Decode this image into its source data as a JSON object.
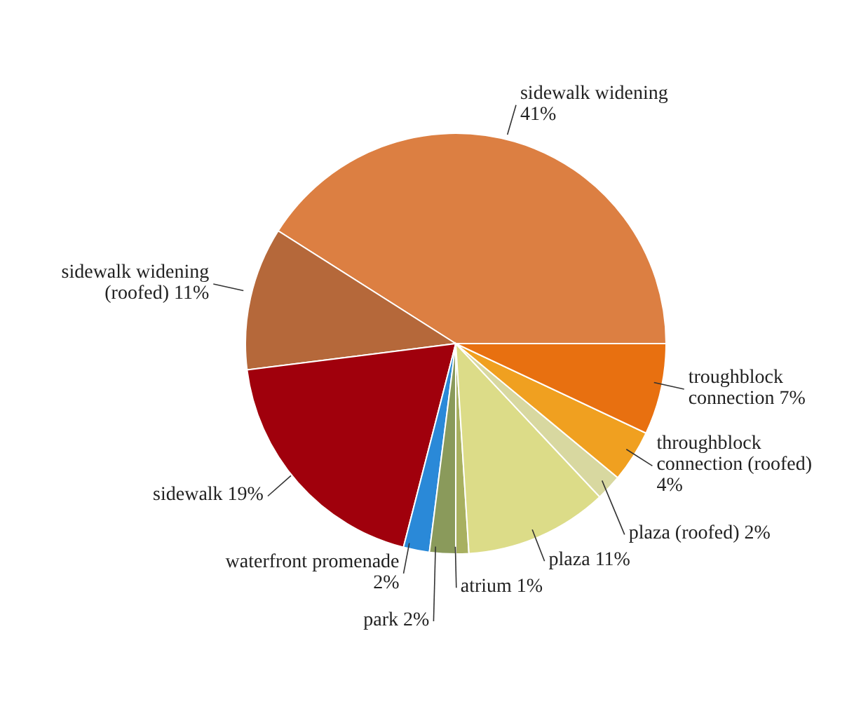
{
  "chart_data": {
    "type": "pie",
    "categories": [
      "sidewalk widening",
      "sidewalk widening (roofed)",
      "sidewalk",
      "waterfront promenade",
      "park",
      "atrium",
      "plaza",
      "plaza (roofed)",
      "throughblock connection (roofed)",
      "troughblock connection"
    ],
    "values": [
      41,
      11,
      19,
      2,
      2,
      1,
      11,
      2,
      4,
      7
    ],
    "value_labels": [
      "41%",
      "11%",
      "19%",
      "2%",
      "2%",
      "1%",
      "11%",
      "2%",
      "4%",
      "7%"
    ],
    "colors": [
      "#dc7f42",
      "#b5683a",
      "#a0000c",
      "#2a89d8",
      "#8a9a5b",
      "#a8b060",
      "#dcdc88",
      "#d8d8a0",
      "#f0a020",
      "#e87010"
    ],
    "legend": false
  }
}
